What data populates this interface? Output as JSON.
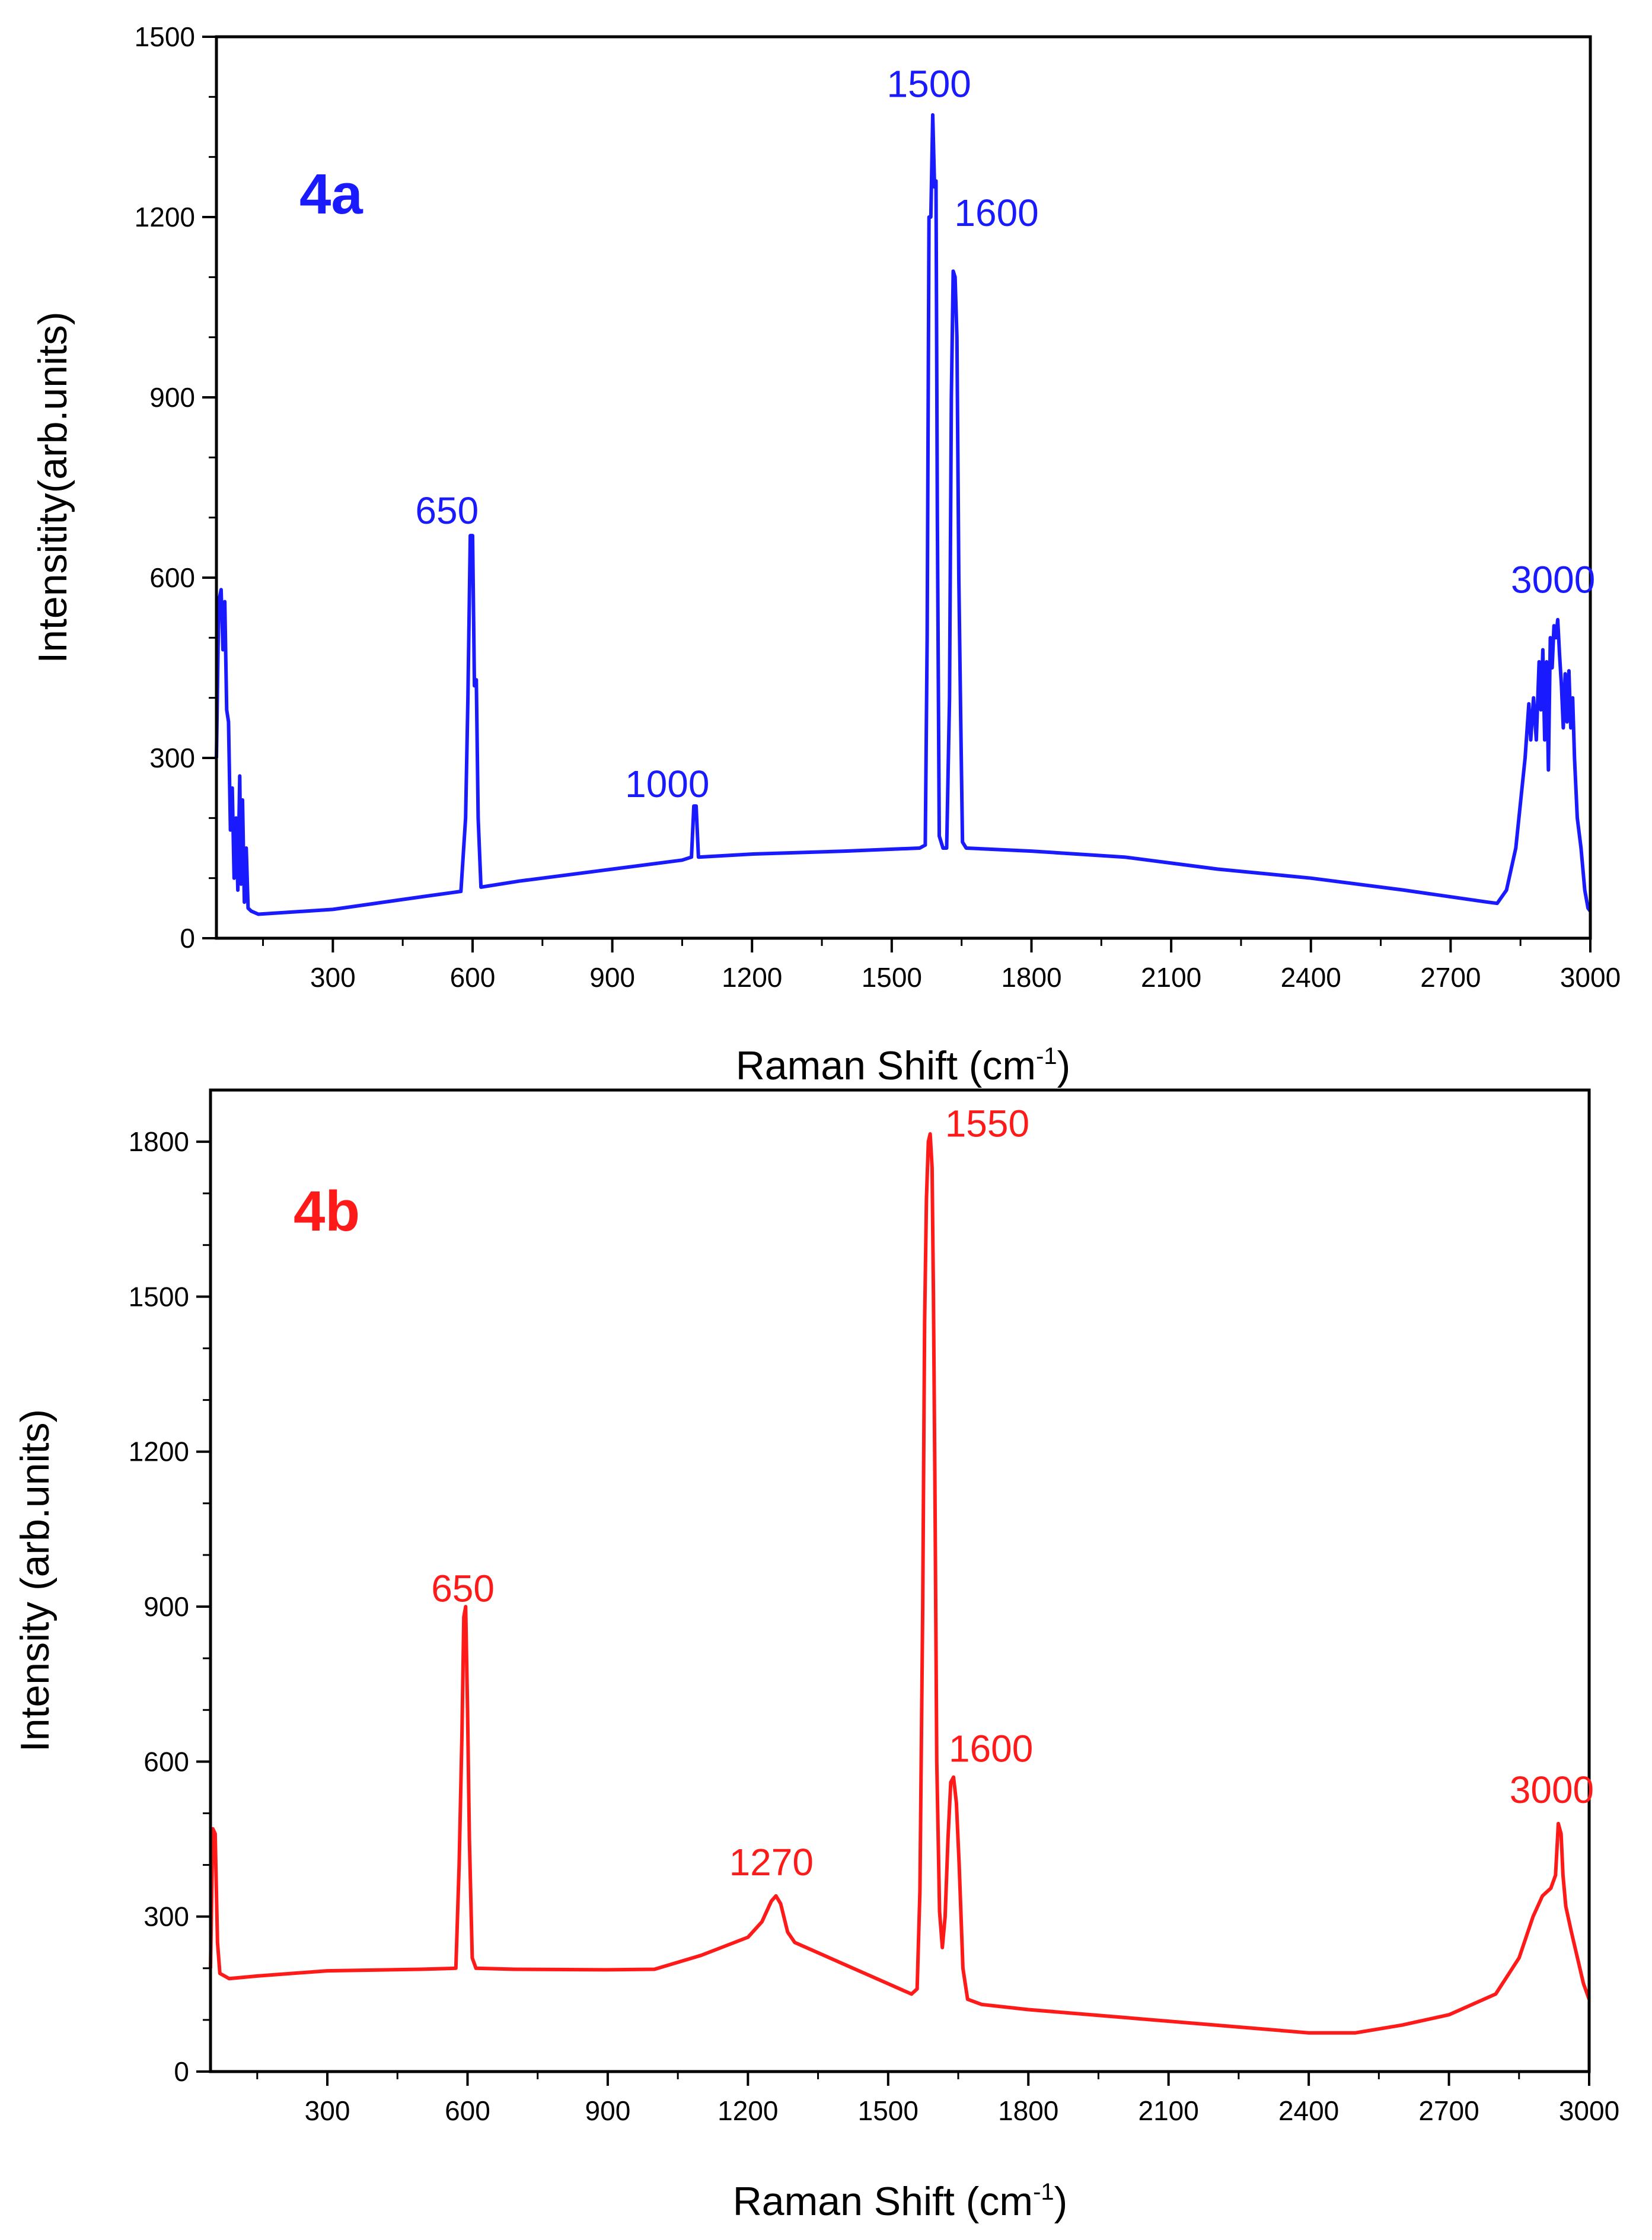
{
  "chart_data": [
    {
      "type": "line",
      "panel_label": "4a",
      "color": "#1a1aff",
      "xlabel": "Raman Shift (cm",
      "xlabel_sup": "-1",
      "xlabel_end": ")",
      "ylabel": "Intensitity(arb.units)",
      "xlim": [
        50,
        3000
      ],
      "ylim": [
        0,
        1500
      ],
      "xticks": [
        300,
        600,
        900,
        1200,
        1500,
        1800,
        2100,
        2400,
        2700,
        3000
      ],
      "yticks": [
        0,
        300,
        600,
        900,
        1200,
        1500
      ],
      "peak_labels": [
        {
          "text": "650",
          "x": 545,
          "y": 690
        },
        {
          "text": "1000",
          "x": 1018,
          "y": 235
        },
        {
          "text": "1500",
          "x": 1580,
          "y": 1400
        },
        {
          "text": "1600",
          "x": 1725,
          "y": 1185
        },
        {
          "text": "3000",
          "x": 2920,
          "y": 575
        }
      ],
      "series": [
        {
          "name": "4a",
          "points": [
            [
              50,
              300
            ],
            [
              55,
              560
            ],
            [
              60,
              580
            ],
            [
              64,
              480
            ],
            [
              68,
              560
            ],
            [
              72,
              380
            ],
            [
              76,
              360
            ],
            [
              80,
              180
            ],
            [
              84,
              250
            ],
            [
              88,
              100
            ],
            [
              92,
              200
            ],
            [
              96,
              80
            ],
            [
              100,
              270
            ],
            [
              103,
              90
            ],
            [
              106,
              230
            ],
            [
              110,
              60
            ],
            [
              114,
              150
            ],
            [
              118,
              50
            ],
            [
              125,
              45
            ],
            [
              140,
              40
            ],
            [
              300,
              48
            ],
            [
              500,
              70
            ],
            [
              575,
              78
            ],
            [
              585,
              200
            ],
            [
              590,
              400
            ],
            [
              595,
              670
            ],
            [
              600,
              670
            ],
            [
              604,
              420
            ],
            [
              608,
              430
            ],
            [
              612,
              200
            ],
            [
              618,
              85
            ],
            [
              700,
              95
            ],
            [
              900,
              115
            ],
            [
              1050,
              130
            ],
            [
              1070,
              135
            ],
            [
              1075,
              220
            ],
            [
              1080,
              220
            ],
            [
              1085,
              135
            ],
            [
              1200,
              140
            ],
            [
              1400,
              145
            ],
            [
              1560,
              150
            ],
            [
              1572,
              155
            ],
            [
              1576,
              500
            ],
            [
              1580,
              1200
            ],
            [
              1584,
              1200
            ],
            [
              1588,
              1370
            ],
            [
              1592,
              1250
            ],
            [
              1595,
              1260
            ],
            [
              1598,
              700
            ],
            [
              1602,
              170
            ],
            [
              1610,
              150
            ],
            [
              1618,
              150
            ],
            [
              1624,
              400
            ],
            [
              1628,
              900
            ],
            [
              1632,
              1110
            ],
            [
              1636,
              1100
            ],
            [
              1640,
              1000
            ],
            [
              1644,
              600
            ],
            [
              1648,
              370
            ],
            [
              1652,
              160
            ],
            [
              1660,
              150
            ],
            [
              1800,
              145
            ],
            [
              2000,
              135
            ],
            [
              2200,
              115
            ],
            [
              2400,
              100
            ],
            [
              2600,
              80
            ],
            [
              2780,
              60
            ],
            [
              2800,
              58
            ],
            [
              2820,
              80
            ],
            [
              2840,
              150
            ],
            [
              2860,
              300
            ],
            [
              2868,
              390
            ],
            [
              2872,
              330
            ],
            [
              2878,
              400
            ],
            [
              2884,
              330
            ],
            [
              2890,
              460
            ],
            [
              2894,
              380
            ],
            [
              2898,
              480
            ],
            [
              2902,
              330
            ],
            [
              2906,
              460
            ],
            [
              2910,
              280
            ],
            [
              2914,
              500
            ],
            [
              2918,
              450
            ],
            [
              2922,
              520
            ],
            [
              2926,
              500
            ],
            [
              2930,
              530
            ],
            [
              2934,
              470
            ],
            [
              2938,
              420
            ],
            [
              2942,
              350
            ],
            [
              2946,
              440
            ],
            [
              2950,
              360
            ],
            [
              2954,
              445
            ],
            [
              2958,
              350
            ],
            [
              2962,
              400
            ],
            [
              2966,
              300
            ],
            [
              2972,
              200
            ],
            [
              2980,
              150
            ],
            [
              2988,
              80
            ],
            [
              2995,
              50
            ],
            [
              3000,
              45
            ]
          ]
        }
      ]
    },
    {
      "type": "line",
      "panel_label": "4b",
      "color": "#ff1a1a",
      "xlabel": "Raman Shift (cm",
      "xlabel_sup": "-1",
      "xlabel_end": ")",
      "ylabel": "Intensity (arb.units)",
      "xlim": [
        50,
        3000
      ],
      "ylim": [
        0,
        1900
      ],
      "xticks": [
        300,
        600,
        900,
        1200,
        1500,
        1800,
        2100,
        2400,
        2700,
        3000
      ],
      "yticks": [
        0,
        300,
        600,
        900,
        1200,
        1500,
        1800
      ],
      "peak_labels": [
        {
          "text": "650",
          "x": 590,
          "y": 910
        },
        {
          "text": "1270",
          "x": 1250,
          "y": 380
        },
        {
          "text": "1550",
          "x": 1712,
          "y": 1810
        },
        {
          "text": "1600",
          "x": 1720,
          "y": 600
        },
        {
          "text": "3000",
          "x": 2920,
          "y": 520
        }
      ],
      "series": [
        {
          "name": "4b",
          "points": [
            [
              50,
              200
            ],
            [
              55,
              470
            ],
            [
              60,
              460
            ],
            [
              65,
              250
            ],
            [
              70,
              190
            ],
            [
              90,
              180
            ],
            [
              150,
              185
            ],
            [
              300,
              195
            ],
            [
              500,
              198
            ],
            [
              575,
              200
            ],
            [
              582,
              400
            ],
            [
              588,
              650
            ],
            [
              592,
              880
            ],
            [
              596,
              900
            ],
            [
              600,
              700
            ],
            [
              604,
              450
            ],
            [
              610,
              220
            ],
            [
              618,
              200
            ],
            [
              700,
              198
            ],
            [
              900,
              197
            ],
            [
              1000,
              198
            ],
            [
              1100,
              225
            ],
            [
              1200,
              260
            ],
            [
              1230,
              290
            ],
            [
              1250,
              330
            ],
            [
              1260,
              340
            ],
            [
              1270,
              325
            ],
            [
              1285,
              270
            ],
            [
              1300,
              250
            ],
            [
              1400,
              210
            ],
            [
              1500,
              170
            ],
            [
              1550,
              150
            ],
            [
              1562,
              160
            ],
            [
              1568,
              350
            ],
            [
              1574,
              900
            ],
            [
              1578,
              1450
            ],
            [
              1582,
              1690
            ],
            [
              1586,
              1800
            ],
            [
              1590,
              1815
            ],
            [
              1594,
              1750
            ],
            [
              1597,
              1500
            ],
            [
              1600,
              1150
            ],
            [
              1604,
              600
            ],
            [
              1610,
              310
            ],
            [
              1616,
              240
            ],
            [
              1622,
              300
            ],
            [
              1628,
              450
            ],
            [
              1634,
              560
            ],
            [
              1640,
              570
            ],
            [
              1646,
              520
            ],
            [
              1652,
              400
            ],
            [
              1660,
              200
            ],
            [
              1670,
              140
            ],
            [
              1700,
              130
            ],
            [
              1800,
              120
            ],
            [
              2000,
              105
            ],
            [
              2200,
              90
            ],
            [
              2400,
              75
            ],
            [
              2500,
              75
            ],
            [
              2600,
              90
            ],
            [
              2700,
              110
            ],
            [
              2800,
              150
            ],
            [
              2850,
              220
            ],
            [
              2880,
              300
            ],
            [
              2900,
              340
            ],
            [
              2918,
              355
            ],
            [
              2928,
              380
            ],
            [
              2934,
              480
            ],
            [
              2940,
              460
            ],
            [
              2944,
              380
            ],
            [
              2950,
              320
            ],
            [
              2962,
              270
            ],
            [
              2975,
              220
            ],
            [
              2988,
              170
            ],
            [
              3000,
              140
            ]
          ]
        }
      ]
    }
  ]
}
